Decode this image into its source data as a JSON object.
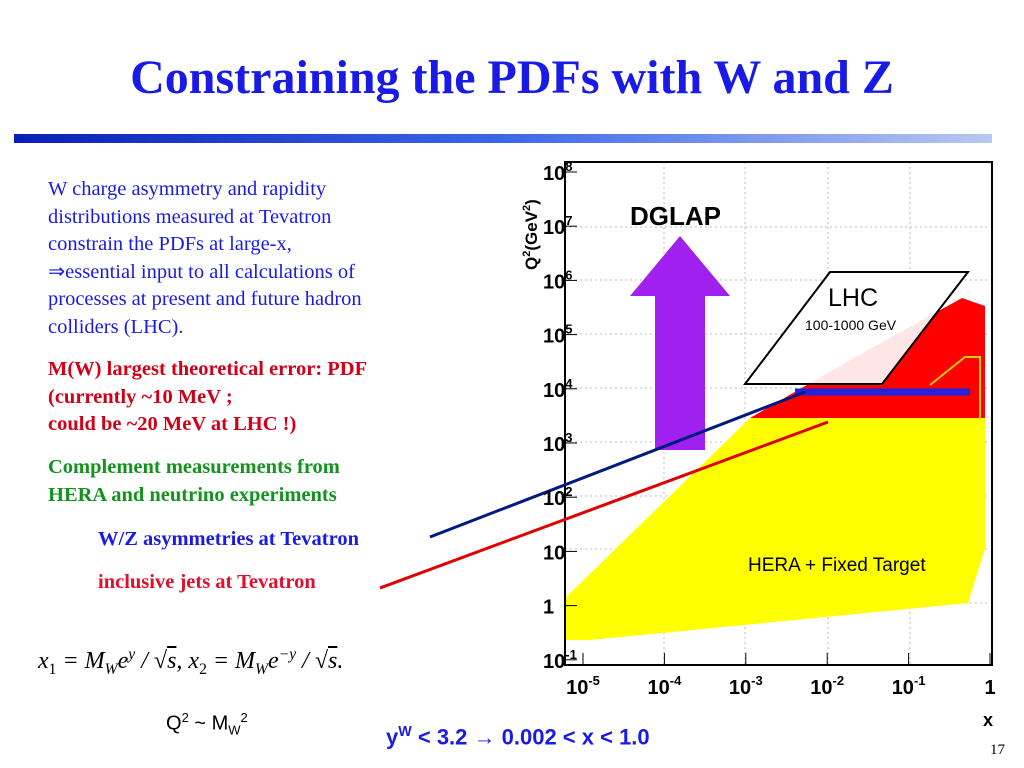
{
  "title": "Constraining the PDFs with W and Z",
  "body": {
    "paragraph1": [
      "W charge asymmetry and rapidity",
      "distributions measured at Tevatron",
      "constrain the PDFs at large-x,",
      "⇒essential input to all calculations of",
      "processes at present and future hadron",
      "colliders (LHC)."
    ],
    "paragraph2": [
      "M(W) largest theoretical error:  PDF",
      "(currently ~10 MeV ;",
      "could be ~20 MeV at LHC !)"
    ],
    "paragraph3": [
      "Complement measurements from",
      "HERA and neutrino experiments"
    ],
    "item1": "W/Z asymmetries at Tevatron",
    "item2": "inclusive jets at Tevatron"
  },
  "formula": [
    "x",
    "1",
    " = M",
    "W",
    "e",
    "y",
    " / √",
    "s",
    ", x",
    "2",
    " = M",
    "W",
    "e",
    "−y",
    " / √",
    "s",
    "."
  ],
  "q2_relation": [
    "Q",
    "2",
    " ~ M",
    "W",
    "2"
  ],
  "range": [
    "y",
    "W",
    " < 3.2 → 0.002 < x < 1.0"
  ],
  "figure": {
    "y_axis_title": [
      "Q",
      "2",
      "(GeV",
      "2",
      ")"
    ],
    "x_axis_title": "x",
    "yticks": [
      {
        "base": "10",
        "exp": "8"
      },
      {
        "base": "10",
        "exp": "7"
      },
      {
        "base": "10",
        "exp": "6"
      },
      {
        "base": "10",
        "exp": "5"
      },
      {
        "base": "10",
        "exp": "4"
      },
      {
        "base": "10",
        "exp": "3"
      },
      {
        "base": "10",
        "exp": "2"
      },
      {
        "base": "10"
      },
      {
        "base": "1"
      },
      {
        "base": "10",
        "exp": "-1"
      }
    ],
    "xticks": [
      {
        "base": "10",
        "exp": "-5"
      },
      {
        "base": "10",
        "exp": "-4"
      },
      {
        "base": "10",
        "exp": "-3"
      },
      {
        "base": "10",
        "exp": "-2"
      },
      {
        "base": "10",
        "exp": "-1"
      },
      {
        "base": "1"
      }
    ],
    "labels": {
      "dglap": "DGLAP",
      "lhc": "LHC",
      "lhc_energy": "100-1000 GeV",
      "hera": "HERA + Fixed Target"
    }
  },
  "page_number": "17"
}
